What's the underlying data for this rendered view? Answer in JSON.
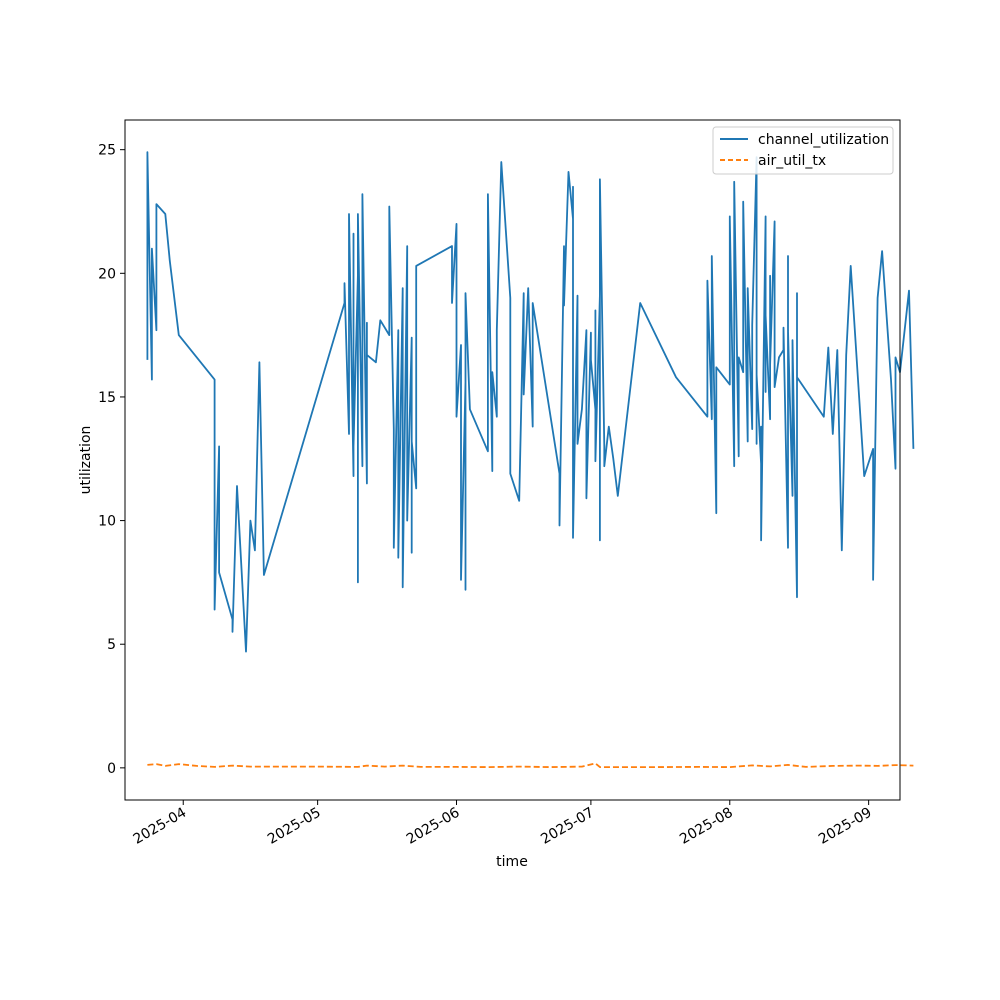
{
  "chart_data": {
    "type": "line",
    "title": "",
    "xlabel": "time",
    "ylabel": "utilization",
    "xlim": [
      "2025-03-19",
      "2025-09-08"
    ],
    "ylim": [
      -1.3,
      26.2
    ],
    "x_ticks": [
      "2025-04-01",
      "2025-05-01",
      "2025-06-01",
      "2025-07-01",
      "2025-08-01",
      "2025-09-01"
    ],
    "x_tick_labels": [
      "2025-04",
      "2025-05",
      "2025-06",
      "2025-07",
      "2025-08",
      "2025-09"
    ],
    "y_ticks": [
      0,
      5,
      10,
      15,
      20,
      25
    ],
    "y_tick_labels": [
      "0",
      "5",
      "10",
      "15",
      "20",
      "25"
    ],
    "grid": false,
    "legend_position": "top-right",
    "series": [
      {
        "name": "channel_utilization",
        "color": "#1f77b4",
        "style": "solid",
        "points": [
          [
            "2025-03-24",
            16.5
          ],
          [
            "2025-03-24",
            24.9
          ],
          [
            "2025-03-25",
            15.7
          ],
          [
            "2025-03-25",
            21.0
          ],
          [
            "2025-03-26",
            17.7
          ],
          [
            "2025-03-26",
            22.8
          ],
          [
            "2025-03-28",
            22.4
          ],
          [
            "2025-03-29",
            20.5
          ],
          [
            "2025-03-31",
            17.5
          ],
          [
            "2025-04-08",
            15.7
          ],
          [
            "2025-04-08",
            6.4
          ],
          [
            "2025-04-09",
            13.0
          ],
          [
            "2025-04-09",
            7.9
          ],
          [
            "2025-04-12",
            6.0
          ],
          [
            "2025-04-12",
            5.5
          ],
          [
            "2025-04-13",
            11.4
          ],
          [
            "2025-04-15",
            4.7
          ],
          [
            "2025-04-16",
            10.0
          ],
          [
            "2025-04-17",
            8.8
          ],
          [
            "2025-04-18",
            16.4
          ],
          [
            "2025-04-19",
            7.8
          ],
          [
            "2025-05-07",
            18.8
          ],
          [
            "2025-05-07",
            19.6
          ],
          [
            "2025-05-08",
            13.5
          ],
          [
            "2025-05-08",
            22.4
          ],
          [
            "2025-05-09",
            11.8
          ],
          [
            "2025-05-09",
            21.6
          ],
          [
            "2025-05-09",
            13.0
          ],
          [
            "2025-05-10",
            19.9
          ],
          [
            "2025-05-10",
            7.5
          ],
          [
            "2025-05-10",
            22.4
          ],
          [
            "2025-05-11",
            12.2
          ],
          [
            "2025-05-11",
            19.6
          ],
          [
            "2025-05-11",
            12.2
          ],
          [
            "2025-05-11",
            23.2
          ],
          [
            "2025-05-12",
            11.5
          ],
          [
            "2025-05-12",
            18.0
          ],
          [
            "2025-05-12",
            16.7
          ],
          [
            "2025-05-14",
            16.4
          ],
          [
            "2025-05-15",
            18.1
          ],
          [
            "2025-05-17",
            17.5
          ],
          [
            "2025-05-17",
            22.7
          ],
          [
            "2025-05-18",
            13.7
          ],
          [
            "2025-05-18",
            8.9
          ],
          [
            "2025-05-19",
            17.7
          ],
          [
            "2025-05-19",
            8.5
          ],
          [
            "2025-05-20",
            19.4
          ],
          [
            "2025-05-20",
            7.3
          ],
          [
            "2025-05-21",
            21.1
          ],
          [
            "2025-05-21",
            10.0
          ],
          [
            "2025-05-22",
            17.4
          ],
          [
            "2025-05-22",
            8.7
          ],
          [
            "2025-05-22",
            13.2
          ],
          [
            "2025-05-23",
            11.3
          ],
          [
            "2025-05-23",
            20.3
          ],
          [
            "2025-05-31",
            21.1
          ],
          [
            "2025-05-31",
            18.8
          ],
          [
            "2025-06-01",
            22.0
          ],
          [
            "2025-06-01",
            14.2
          ],
          [
            "2025-06-02",
            17.1
          ],
          [
            "2025-06-02",
            7.6
          ],
          [
            "2025-06-03",
            15.6
          ],
          [
            "2025-06-03",
            7.2
          ],
          [
            "2025-06-03",
            19.2
          ],
          [
            "2025-06-04",
            14.5
          ],
          [
            "2025-06-08",
            12.8
          ],
          [
            "2025-06-08",
            23.2
          ],
          [
            "2025-06-09",
            12.0
          ],
          [
            "2025-06-09",
            16.0
          ],
          [
            "2025-06-10",
            14.2
          ],
          [
            "2025-06-10",
            17.7
          ],
          [
            "2025-06-11",
            24.5
          ],
          [
            "2025-06-13",
            19.0
          ],
          [
            "2025-06-13",
            11.9
          ],
          [
            "2025-06-15",
            10.8
          ],
          [
            "2025-06-16",
            19.2
          ],
          [
            "2025-06-16",
            15.1
          ],
          [
            "2025-06-17",
            19.4
          ],
          [
            "2025-06-18",
            13.8
          ],
          [
            "2025-06-18",
            18.8
          ],
          [
            "2025-06-24",
            11.9
          ],
          [
            "2025-06-24",
            9.8
          ],
          [
            "2025-06-25",
            21.1
          ],
          [
            "2025-06-25",
            18.7
          ],
          [
            "2025-06-26",
            24.1
          ],
          [
            "2025-06-27",
            22.2
          ],
          [
            "2025-06-27",
            23.5
          ],
          [
            "2025-06-27",
            9.3
          ],
          [
            "2025-06-28",
            19.1
          ],
          [
            "2025-06-28",
            13.1
          ],
          [
            "2025-06-29",
            14.5
          ],
          [
            "2025-06-30",
            17.7
          ],
          [
            "2025-06-30",
            10.9
          ],
          [
            "2025-07-01",
            17.6
          ],
          [
            "2025-07-01",
            16.5
          ],
          [
            "2025-07-02",
            14.5
          ],
          [
            "2025-07-02",
            18.5
          ],
          [
            "2025-07-02",
            12.4
          ],
          [
            "2025-07-03",
            19.1
          ],
          [
            "2025-07-03",
            9.2
          ],
          [
            "2025-07-03",
            23.8
          ],
          [
            "2025-07-04",
            13.0
          ],
          [
            "2025-07-04",
            12.2
          ],
          [
            "2025-07-05",
            13.8
          ],
          [
            "2025-07-06",
            12.5
          ],
          [
            "2025-07-07",
            11.0
          ],
          [
            "2025-07-12",
            18.8
          ],
          [
            "2025-07-20",
            15.8
          ],
          [
            "2025-07-27",
            14.2
          ],
          [
            "2025-07-27",
            19.7
          ],
          [
            "2025-07-28",
            14.1
          ],
          [
            "2025-07-28",
            20.7
          ],
          [
            "2025-07-29",
            10.3
          ],
          [
            "2025-07-29",
            16.2
          ],
          [
            "2025-08-01",
            15.5
          ],
          [
            "2025-08-01",
            22.3
          ],
          [
            "2025-08-01",
            22.2
          ],
          [
            "2025-08-02",
            12.2
          ],
          [
            "2025-08-02",
            18.5
          ],
          [
            "2025-08-02",
            16.0
          ],
          [
            "2025-08-02",
            23.7
          ],
          [
            "2025-08-03",
            12.6
          ],
          [
            "2025-08-03",
            16.6
          ],
          [
            "2025-08-04",
            16.0
          ],
          [
            "2025-08-04",
            22.9
          ],
          [
            "2025-08-05",
            13.2
          ],
          [
            "2025-08-05",
            19.4
          ],
          [
            "2025-08-06",
            13.7
          ],
          [
            "2025-08-06",
            17.9
          ],
          [
            "2025-08-07",
            24.7
          ],
          [
            "2025-08-07",
            13.1
          ],
          [
            "2025-08-07",
            15.9
          ],
          [
            "2025-08-08",
            12.3
          ],
          [
            "2025-08-08",
            13.8
          ],
          [
            "2025-08-08",
            9.2
          ],
          [
            "2025-08-09",
            22.3
          ],
          [
            "2025-08-09",
            15.2
          ],
          [
            "2025-08-09",
            18.3
          ],
          [
            "2025-08-10",
            14.1
          ],
          [
            "2025-08-10",
            19.9
          ],
          [
            "2025-08-10",
            16.3
          ],
          [
            "2025-08-11",
            22.1
          ],
          [
            "2025-08-11",
            15.4
          ],
          [
            "2025-08-12",
            16.6
          ],
          [
            "2025-08-13",
            16.9
          ],
          [
            "2025-08-13",
            17.8
          ],
          [
            "2025-08-14",
            8.9
          ],
          [
            "2025-08-14",
            20.7
          ],
          [
            "2025-08-14",
            17.7
          ],
          [
            "2025-08-15",
            11.0
          ],
          [
            "2025-08-15",
            17.3
          ],
          [
            "2025-08-16",
            6.9
          ],
          [
            "2025-08-16",
            19.2
          ],
          [
            "2025-08-16",
            15.8
          ],
          [
            "2025-08-22",
            14.2
          ],
          [
            "2025-08-23",
            17.0
          ],
          [
            "2025-08-24",
            13.5
          ],
          [
            "2025-08-25",
            16.9
          ],
          [
            "2025-08-26",
            8.8
          ],
          [
            "2025-08-27",
            16.7
          ],
          [
            "2025-08-28",
            20.3
          ],
          [
            "2025-08-31",
            11.8
          ],
          [
            "2025-09-02",
            12.9
          ],
          [
            "2025-09-02",
            7.6
          ],
          [
            "2025-09-03",
            19.0
          ],
          [
            "2025-09-04",
            20.9
          ],
          [
            "2025-09-06",
            15.7
          ],
          [
            "2025-09-07",
            12.1
          ],
          [
            "2025-09-07",
            16.6
          ],
          [
            "2025-09-08",
            16.0
          ],
          [
            "2025-09-10",
            19.3
          ],
          [
            "2025-09-11",
            12.9
          ]
        ]
      },
      {
        "name": "air_util_tx",
        "color": "#ff7f0e",
        "style": "dashed",
        "points": [
          [
            "2025-03-24",
            0.12
          ],
          [
            "2025-03-26",
            0.15
          ],
          [
            "2025-03-28",
            0.08
          ],
          [
            "2025-03-31",
            0.15
          ],
          [
            "2025-04-04",
            0.08
          ],
          [
            "2025-04-08",
            0.04
          ],
          [
            "2025-04-12",
            0.09
          ],
          [
            "2025-04-16",
            0.05
          ],
          [
            "2025-04-20",
            0.05
          ],
          [
            "2025-05-01",
            0.05
          ],
          [
            "2025-05-10",
            0.04
          ],
          [
            "2025-05-12",
            0.09
          ],
          [
            "2025-05-16",
            0.05
          ],
          [
            "2025-05-20",
            0.09
          ],
          [
            "2025-05-24",
            0.04
          ],
          [
            "2025-06-01",
            0.04
          ],
          [
            "2025-06-08",
            0.03
          ],
          [
            "2025-06-15",
            0.05
          ],
          [
            "2025-06-22",
            0.03
          ],
          [
            "2025-06-29",
            0.05
          ],
          [
            "2025-07-02",
            0.18
          ],
          [
            "2025-07-03",
            0.03
          ],
          [
            "2025-07-15",
            0.03
          ],
          [
            "2025-07-25",
            0.04
          ],
          [
            "2025-08-01",
            0.03
          ],
          [
            "2025-08-06",
            0.1
          ],
          [
            "2025-08-10",
            0.06
          ],
          [
            "2025-08-14",
            0.12
          ],
          [
            "2025-08-18",
            0.04
          ],
          [
            "2025-08-24",
            0.08
          ],
          [
            "2025-08-30",
            0.09
          ],
          [
            "2025-09-03",
            0.08
          ],
          [
            "2025-09-07",
            0.11
          ],
          [
            "2025-09-11",
            0.09
          ]
        ]
      }
    ]
  }
}
